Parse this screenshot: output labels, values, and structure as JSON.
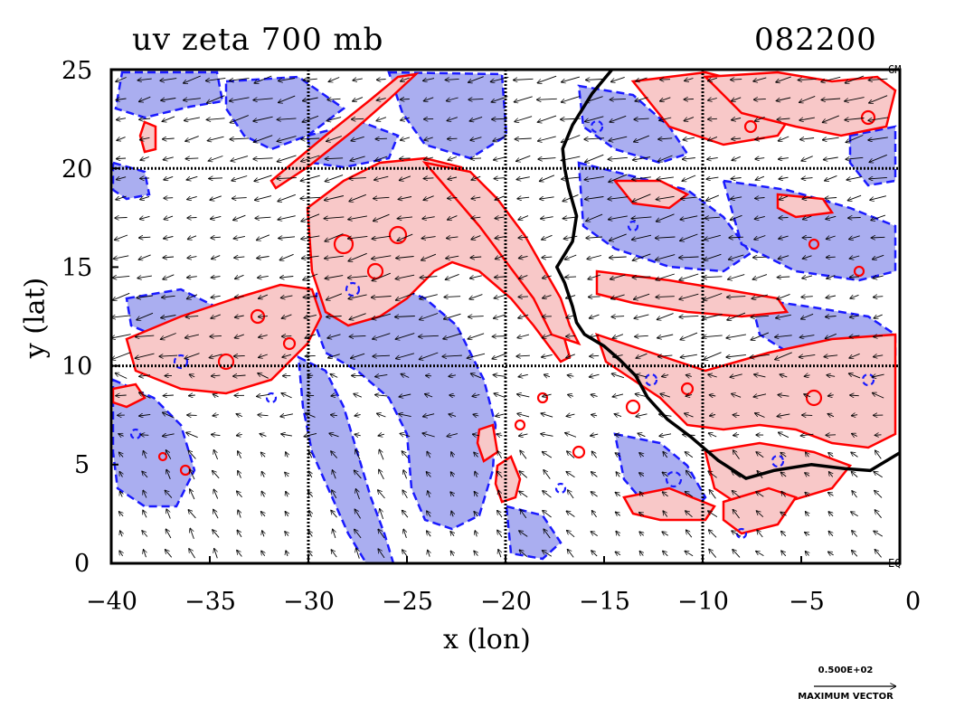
{
  "chart_data": {
    "type": "map",
    "title": "uv zeta 700 mb",
    "time_label": "082200",
    "xlabel": "x (lon)",
    "ylabel": "y (lat)",
    "xlim": [
      -40,
      0
    ],
    "ylim": [
      0,
      25
    ],
    "x_ticks": [
      -40,
      -35,
      -30,
      -25,
      -20,
      -15,
      -10,
      -5,
      0
    ],
    "y_ticks": [
      0,
      5,
      10,
      15,
      20,
      25
    ],
    "x_tick_labels": [
      "−40",
      "−35",
      "−30",
      "−25",
      "−20",
      "−15",
      "−10",
      "−5",
      "0"
    ],
    "y_tick_labels": [
      "0",
      "5",
      "10",
      "15",
      "20",
      "25"
    ],
    "gridlines_lon": [
      -30,
      -20,
      -10
    ],
    "gridlines_lat": [
      10,
      20
    ],
    "corner_labels": {
      "top_right": "GM",
      "bottom_right": "EQ"
    },
    "reference_vector": {
      "value": "0.500E+02",
      "caption": "MAXIMUM VECTOR"
    },
    "legend": {
      "positive_vorticity_color": "#ff0000",
      "positive_fill": "#f7c6c6",
      "negative_vorticity_color": "#0000ff",
      "negative_fill": "#a9aef0",
      "negative_contour_style": "dashed"
    },
    "coastline": [
      [
        -14.6,
        25
      ],
      [
        -15.6,
        23.8
      ],
      [
        -16.6,
        22.2
      ],
      [
        -17.1,
        21
      ],
      [
        -17.0,
        20.0
      ],
      [
        -16.8,
        19.0
      ],
      [
        -16.4,
        17.6
      ],
      [
        -16.6,
        16.3
      ],
      [
        -17.4,
        15.0
      ],
      [
        -17.0,
        14.2
      ],
      [
        -16.6,
        13.0
      ],
      [
        -16.4,
        12.2
      ],
      [
        -16.0,
        11.6
      ],
      [
        -15.0,
        11.0
      ],
      [
        -14.2,
        10.3
      ],
      [
        -13.4,
        9.5
      ],
      [
        -12.8,
        8.4
      ],
      [
        -11.8,
        7.3
      ],
      [
        -10.6,
        6.4
      ],
      [
        -9.2,
        5.2
      ],
      [
        -7.8,
        4.3
      ],
      [
        -6.4,
        4.7
      ],
      [
        -4.5,
        5.0
      ],
      [
        -2.8,
        4.8
      ],
      [
        -1.5,
        4.7
      ],
      [
        0,
        5.6
      ]
    ],
    "wind_field": "uniform 10 x 13 arrow field, easterly trades north of 10N turning southeasterly near the equator"
  }
}
